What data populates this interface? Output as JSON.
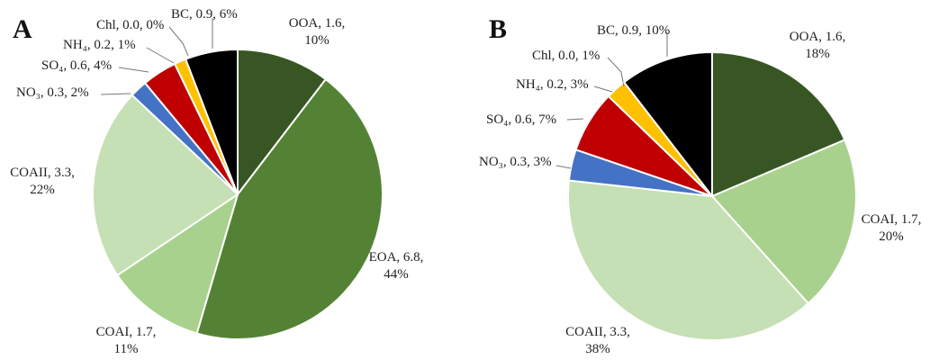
{
  "chart_data": [
    {
      "type": "pie",
      "panel_label": "A",
      "slices": [
        {
          "name": "OOA",
          "value": 1.6,
          "percent": "10%",
          "color": "#375623"
        },
        {
          "name": "EOA",
          "value": 6.8,
          "percent": "44%",
          "color": "#548235"
        },
        {
          "name": "COAI",
          "value": 1.7,
          "percent": "11%",
          "color": "#a9d18e"
        },
        {
          "name": "COAII",
          "value": 3.3,
          "percent": "22%",
          "color": "#c5e0b4"
        },
        {
          "name": "NO3",
          "value": 0.3,
          "percent": "2%",
          "color": "#4472c4"
        },
        {
          "name": "SO4",
          "value": 0.6,
          "percent": "4%",
          "color": "#c00000"
        },
        {
          "name": "NH4",
          "value": 0.2,
          "percent": "1%",
          "color": "#ffc000"
        },
        {
          "name": "Chl",
          "value": 0.0,
          "percent": "0%",
          "color": "#ff66cc"
        },
        {
          "name": "BC",
          "value": 0.9,
          "percent": "6%",
          "color": "#000000"
        }
      ],
      "labels": {
        "OOA": [
          "OOA, 1.6,",
          "10%"
        ],
        "EOA": [
          "EOA, 6.8,",
          "44%"
        ],
        "COAI": [
          "COAI, 1.7,",
          "11%"
        ],
        "COAII": [
          "COAII, 3.3,",
          "22%"
        ],
        "NO3": [
          "NO₃, 0.3, 2%"
        ],
        "SO4": [
          "SO₄, 0.6, 4%"
        ],
        "NH4": [
          "NH₄, 0.2, 1%"
        ],
        "Chl": [
          "Chl, 0.0, 0%"
        ],
        "BC": [
          "BC, 0.9, 6%"
        ]
      }
    },
    {
      "type": "pie",
      "panel_label": "B",
      "slices": [
        {
          "name": "OOA",
          "value": 1.6,
          "percent": "18%",
          "color": "#375623"
        },
        {
          "name": "COAI",
          "value": 1.7,
          "percent": "20%",
          "color": "#a9d18e"
        },
        {
          "name": "COAII",
          "value": 3.3,
          "percent": "38%",
          "color": "#c5e0b4"
        },
        {
          "name": "NO3",
          "value": 0.3,
          "percent": "3%",
          "color": "#4472c4"
        },
        {
          "name": "SO4",
          "value": 0.6,
          "percent": "7%",
          "color": "#c00000"
        },
        {
          "name": "NH4",
          "value": 0.2,
          "percent": "3%",
          "color": "#ffc000"
        },
        {
          "name": "Chl",
          "value": 0.0,
          "percent": "1%",
          "color": "#ff66cc"
        },
        {
          "name": "BC",
          "value": 0.9,
          "percent": "10%",
          "color": "#000000"
        }
      ],
      "labels": {
        "OOA": [
          "OOA, 1.6,",
          "18%"
        ],
        "COAI": [
          "COAI, 1.7,",
          "20%"
        ],
        "COAII": [
          "COAII, 3.3,",
          "38%"
        ],
        "NO3": [
          "NO₃, 0.3, 3%"
        ],
        "SO4": [
          "SO₄, 0.6, 7%"
        ],
        "NH4": [
          "NH₄, 0.2, 3%"
        ],
        "Chl": [
          "Chl, 0.0, 1%"
        ],
        "BC": [
          "BC, 0.9, 10%"
        ]
      }
    }
  ]
}
